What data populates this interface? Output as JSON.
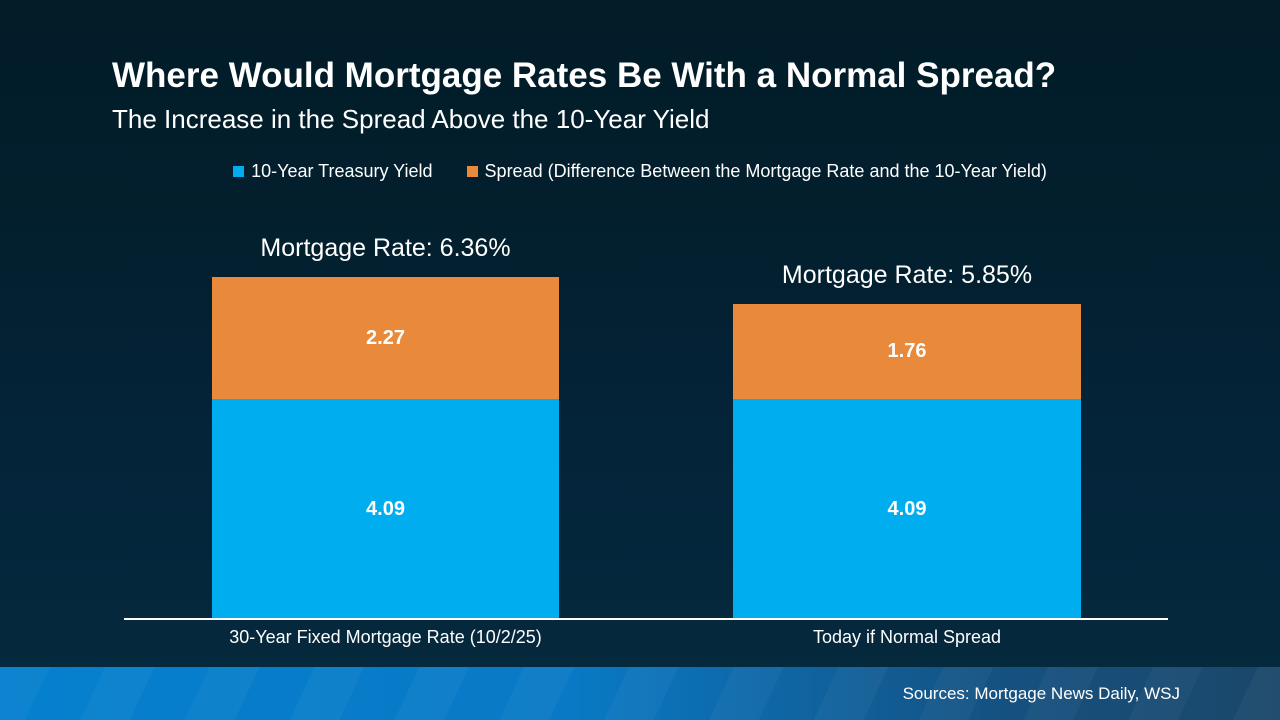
{
  "slide": {
    "title": "Where Would Mortgage Rates Be With a Normal Spread?",
    "subtitle": "The Increase in the Spread Above the 10-Year Yield",
    "sources": "Sources: Mortgage News Daily, WSJ"
  },
  "colors": {
    "background_top": "#021C28",
    "background_bottom": "#05293D",
    "treasury_blue": "#00AEEF",
    "spread_orange": "#E8893B",
    "footer_blue_left": "#0580CE",
    "footer_blue_right": "#1B4769",
    "axis_white": "#FFFFFF"
  },
  "chart_data": {
    "type": "bar",
    "stacked": true,
    "grid": false,
    "legend_position": "top",
    "categories": [
      "30-Year Fixed Mortgage Rate (10/2/25)",
      "Today if Normal Spread"
    ],
    "series": [
      {
        "name": "10-Year Treasury Yield",
        "color": "#00AEEF",
        "values": [
          4.09,
          4.09
        ]
      },
      {
        "name": "Spread (Difference Between the Mortgage Rate and the 10-Year Yield)",
        "color": "#E8893B",
        "values": [
          2.27,
          1.76
        ]
      }
    ],
    "totals": [
      6.36,
      5.85
    ],
    "total_labels": [
      "Mortgage Rate: 6.36%",
      "Mortgage Rate: 5.85%"
    ],
    "ylim": [
      0,
      6.6
    ]
  }
}
